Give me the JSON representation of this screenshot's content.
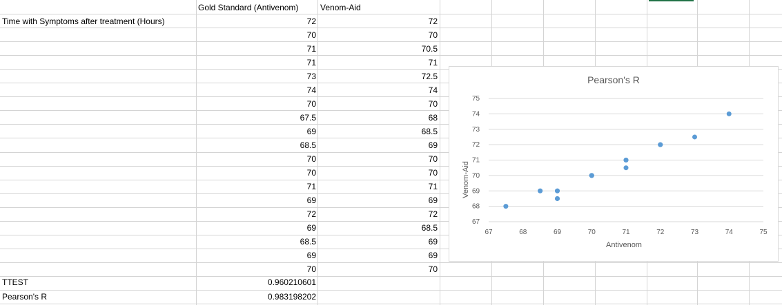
{
  "sheet": {
    "header_a": "",
    "header_b": "Gold Standard (Antivenom)",
    "header_c": "Venom-Aid",
    "row_label": "Time with Symptoms after treatment (Hours)",
    "antivenom": [
      "72",
      "70",
      "71",
      "71",
      "73",
      "74",
      "70",
      "67.5",
      "69",
      "68.5",
      "70",
      "70",
      "71",
      "69",
      "72",
      "69",
      "68.5",
      "69",
      "70"
    ],
    "venom_aid": [
      "72",
      "70",
      "70.5",
      "71",
      "72.5",
      "74",
      "70",
      "68",
      "68.5",
      "69",
      "70",
      "70",
      "71",
      "69",
      "72",
      "68.5",
      "69",
      "69",
      "70"
    ],
    "ttest_label": "TTEST",
    "ttest_value": "0.960210601",
    "pearson_label": "Pearson's R",
    "pearson_value": "0.983198202"
  },
  "chart_data": {
    "type": "scatter",
    "title": "Pearson's R",
    "xlabel": "Antivenom",
    "ylabel": "Venom-Aid",
    "xlim": [
      67,
      75
    ],
    "ylim": [
      67,
      75
    ],
    "xticks": [
      "67",
      "68",
      "69",
      "70",
      "71",
      "72",
      "73",
      "74",
      "75"
    ],
    "yticks": [
      "67",
      "68",
      "69",
      "70",
      "71",
      "72",
      "73",
      "74",
      "75"
    ],
    "grid": true,
    "marker_color": "#5b9bd5",
    "series": [
      {
        "x": [
          72,
          70,
          71,
          71,
          73,
          74,
          70,
          67.5,
          69,
          68.5,
          70,
          70,
          71,
          69,
          72,
          69,
          68.5,
          69,
          70
        ],
        "y": [
          72,
          70,
          70.5,
          71,
          72.5,
          74,
          70,
          68,
          68.5,
          69,
          70,
          70,
          71,
          69,
          72,
          68.5,
          69,
          69,
          70
        ]
      }
    ]
  }
}
